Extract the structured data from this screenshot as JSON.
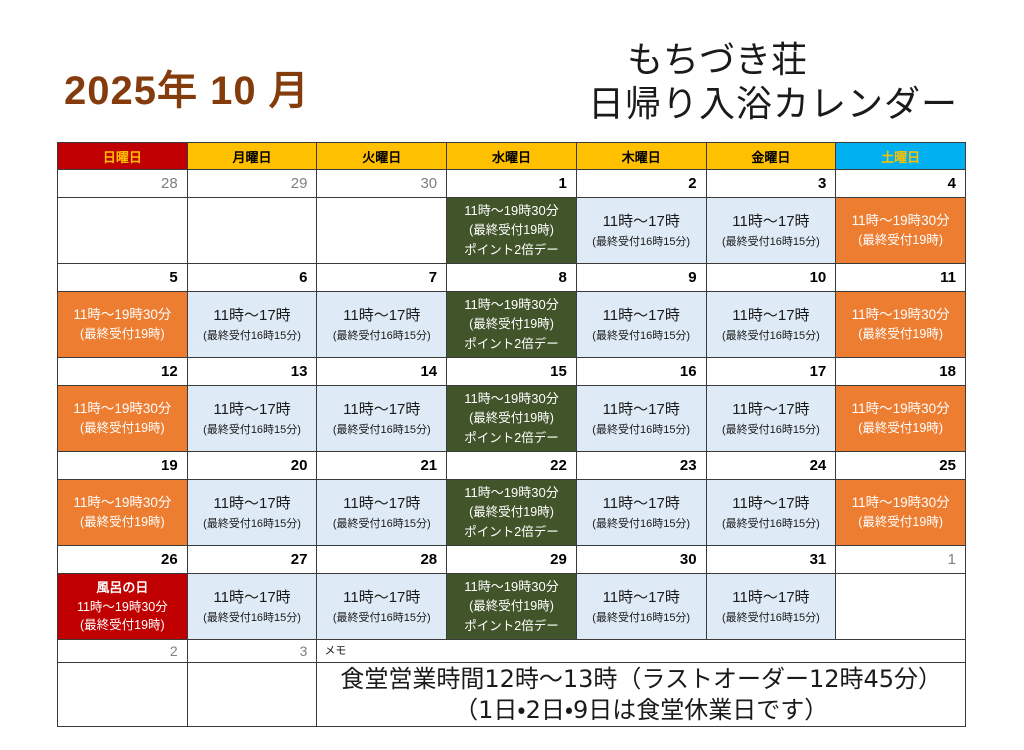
{
  "titles": {
    "month": "2025年 10 月",
    "facility_line1": "もちづき荘",
    "facility_line2": "日帰り入浴カレンダー"
  },
  "colors": {
    "month_title": "#843C0C",
    "header_sunday_bg": "#C00000",
    "header_weekday_bg": "#FFC000",
    "header_saturday_bg": "#00B0F0",
    "header_accent_text": "#FFC000",
    "open_long_bg": "#ED7D31",
    "open_short_bg": "#DEEBF7",
    "point_day_bg": "#42552A",
    "furo_day_bg": "#C00000",
    "muted_date": "#7f7f7f"
  },
  "calendar": {
    "weekday_headers": [
      {
        "label": "日曜日",
        "bg": "#C00000",
        "fg": "#FFC000"
      },
      {
        "label": "月曜日",
        "bg": "#FFC000",
        "fg": "#000000"
      },
      {
        "label": "火曜日",
        "bg": "#FFC000",
        "fg": "#000000"
      },
      {
        "label": "水曜日",
        "bg": "#FFC000",
        "fg": "#000000"
      },
      {
        "label": "木曜日",
        "bg": "#FFC000",
        "fg": "#000000"
      },
      {
        "label": "金曜日",
        "bg": "#FFC000",
        "fg": "#000000"
      },
      {
        "label": "土曜日",
        "bg": "#00B0F0",
        "fg": "#FFC000"
      }
    ],
    "schedule_types": {
      "long": {
        "bg": "#ED7D31",
        "fg": "#FFFFFF",
        "lines": [
          "11時～19時30分",
          "(最終受付19時)"
        ]
      },
      "short": {
        "bg": "#DEEBF7",
        "fg": "#1A1A1A",
        "lines": [
          "11時～17時",
          "(最終受付16時15分)"
        ]
      },
      "point": {
        "bg": "#42552A",
        "fg": "#FFFFFF",
        "lines": [
          "11時～19時30分",
          "(最終受付19時)",
          "ポイント2倍デー"
        ]
      },
      "furo": {
        "bg": "#C00000",
        "fg": "#FFFFFF",
        "lines": [
          "風呂の日",
          "11時～19時30分",
          "(最終受付19時)"
        ]
      },
      "none": {
        "bg": "#FFFFFF",
        "fg": "#000000",
        "lines": []
      }
    },
    "weeks": [
      {
        "days": [
          {
            "date": "28",
            "muted": true,
            "type": "none"
          },
          {
            "date": "29",
            "muted": true,
            "type": "none"
          },
          {
            "date": "30",
            "muted": true,
            "type": "none"
          },
          {
            "date": "1",
            "muted": false,
            "type": "point"
          },
          {
            "date": "2",
            "muted": false,
            "type": "short"
          },
          {
            "date": "3",
            "muted": false,
            "type": "short"
          },
          {
            "date": "4",
            "muted": false,
            "type": "long"
          }
        ]
      },
      {
        "days": [
          {
            "date": "5",
            "muted": false,
            "type": "long"
          },
          {
            "date": "6",
            "muted": false,
            "type": "short"
          },
          {
            "date": "7",
            "muted": false,
            "type": "short"
          },
          {
            "date": "8",
            "muted": false,
            "type": "point"
          },
          {
            "date": "9",
            "muted": false,
            "type": "short"
          },
          {
            "date": "10",
            "muted": false,
            "type": "short"
          },
          {
            "date": "11",
            "muted": false,
            "type": "long"
          }
        ]
      },
      {
        "days": [
          {
            "date": "12",
            "muted": false,
            "type": "long"
          },
          {
            "date": "13",
            "muted": false,
            "type": "short"
          },
          {
            "date": "14",
            "muted": false,
            "type": "short"
          },
          {
            "date": "15",
            "muted": false,
            "type": "point"
          },
          {
            "date": "16",
            "muted": false,
            "type": "short"
          },
          {
            "date": "17",
            "muted": false,
            "type": "short"
          },
          {
            "date": "18",
            "muted": false,
            "type": "long"
          }
        ]
      },
      {
        "days": [
          {
            "date": "19",
            "muted": false,
            "type": "long"
          },
          {
            "date": "20",
            "muted": false,
            "type": "short"
          },
          {
            "date": "21",
            "muted": false,
            "type": "short"
          },
          {
            "date": "22",
            "muted": false,
            "type": "point"
          },
          {
            "date": "23",
            "muted": false,
            "type": "short"
          },
          {
            "date": "24",
            "muted": false,
            "type": "short"
          },
          {
            "date": "25",
            "muted": false,
            "type": "long"
          }
        ]
      },
      {
        "days": [
          {
            "date": "26",
            "muted": false,
            "type": "furo"
          },
          {
            "date": "27",
            "muted": false,
            "type": "short"
          },
          {
            "date": "28",
            "muted": false,
            "type": "short"
          },
          {
            "date": "29",
            "muted": false,
            "type": "point"
          },
          {
            "date": "30",
            "muted": false,
            "type": "short"
          },
          {
            "date": "31",
            "muted": false,
            "type": "short"
          },
          {
            "date": "1",
            "muted": true,
            "type": "none"
          }
        ]
      }
    ],
    "memo_row": {
      "overflow_dates": [
        "2",
        "3"
      ],
      "memo_label": "メモ"
    },
    "notes": [
      "食堂営業時間12時～13時（ラストオーダー12時45分）",
      "（1日・2日・9日は食堂休業日です）"
    ]
  }
}
